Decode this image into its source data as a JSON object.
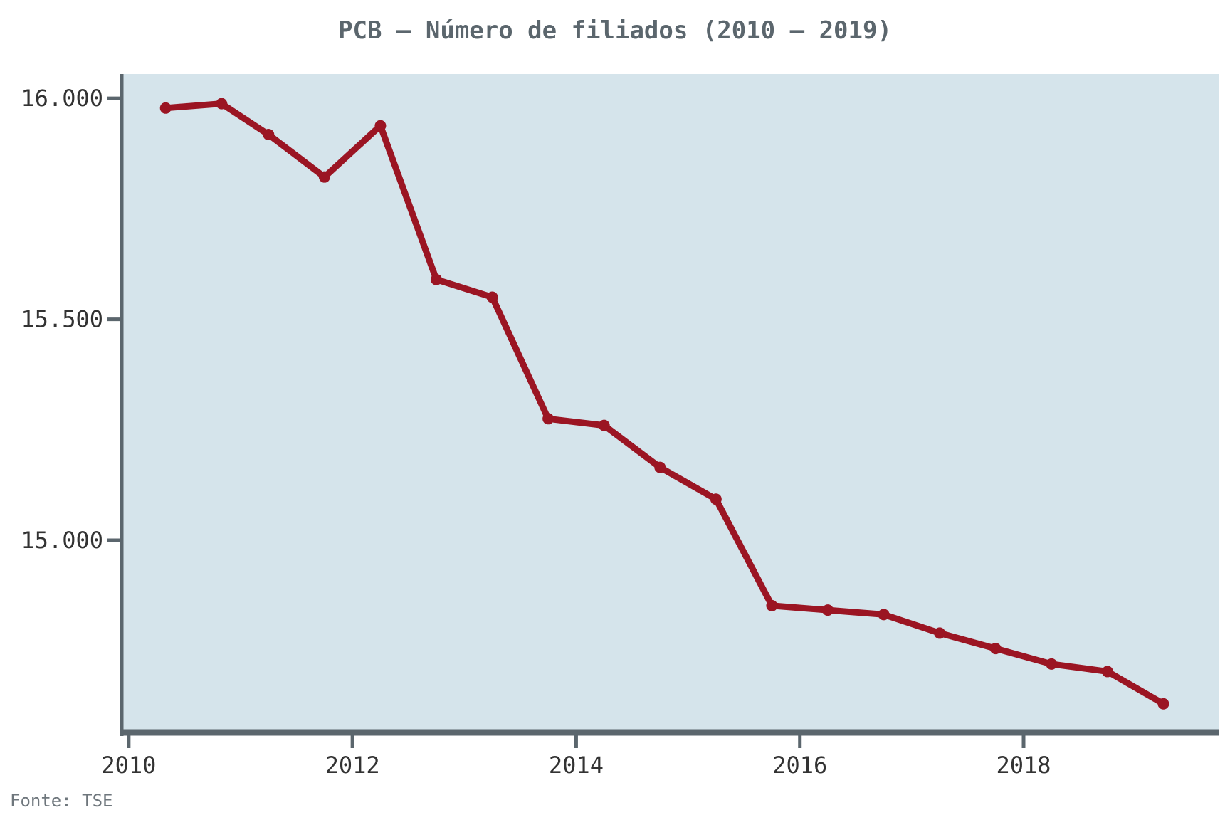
{
  "source": "Fonte: TSE",
  "colors": {
    "plot_bg": "#d5e4eb",
    "line": "#9b1523",
    "axis": "#5b666d",
    "title": "#5b666d",
    "tick_text": "#333333",
    "source_text": "#6e767c"
  },
  "chart_data": {
    "type": "line",
    "title": "PCB – Número de filiados (2010 – 2019)",
    "xlabel": "",
    "ylabel": "",
    "xlim": [
      2009.95,
      2019.75
    ],
    "ylim": [
      14570,
      16055
    ],
    "x_ticks": [
      2010,
      2012,
      2014,
      2016,
      2018
    ],
    "x_tick_labels": [
      "2010",
      "2012",
      "2014",
      "2016",
      "2018"
    ],
    "y_ticks": [
      15000,
      15500,
      16000
    ],
    "y_tick_labels": [
      "15.000",
      "15.500",
      "16.000"
    ],
    "grid": false,
    "legend": "none",
    "series": [
      {
        "x": [
          2010.33,
          2010.83,
          2011.25,
          2011.75,
          2012.25,
          2012.75,
          2013.25,
          2013.75,
          2014.25,
          2014.75,
          2015.25,
          2015.75,
          2016.25,
          2016.75,
          2017.25,
          2017.75,
          2018.25,
          2018.75,
          2019.25
        ],
        "y": [
          15978,
          15988,
          15918,
          15822,
          15938,
          15590,
          15550,
          15275,
          15260,
          15165,
          15093,
          14852,
          14842,
          14832,
          14790,
          14755,
          14720,
          14703,
          14630
        ]
      }
    ]
  }
}
